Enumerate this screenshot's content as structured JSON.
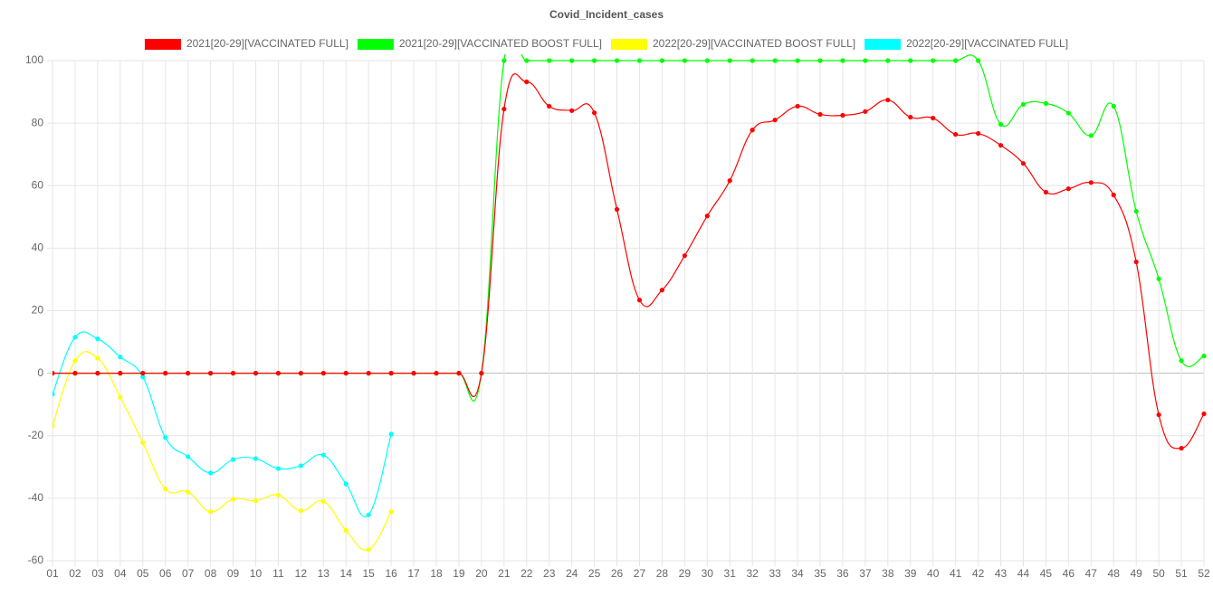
{
  "chart_data": {
    "type": "line",
    "title": "Covid_Incident_cases",
    "categories": [
      "01",
      "02",
      "03",
      "04",
      "05",
      "06",
      "07",
      "08",
      "09",
      "10",
      "11",
      "12",
      "13",
      "14",
      "15",
      "16",
      "17",
      "18",
      "19",
      "20",
      "21",
      "22",
      "23",
      "24",
      "25",
      "26",
      "27",
      "28",
      "29",
      "30",
      "31",
      "32",
      "33",
      "34",
      "35",
      "36",
      "37",
      "38",
      "39",
      "40",
      "41",
      "42",
      "43",
      "44",
      "45",
      "46",
      "47",
      "48",
      "49",
      "50",
      "51",
      "52"
    ],
    "ylim": [
      -60,
      100
    ],
    "yticks": [
      -60,
      -40,
      -20,
      0,
      20,
      40,
      60,
      80,
      100
    ],
    "grid": true,
    "series": [
      {
        "name": "2021[20-29][VACCINATED FULL]",
        "color": "#ff0000",
        "values": [
          0,
          0,
          0,
          0,
          0,
          0,
          0,
          0,
          0,
          0,
          0,
          0,
          0,
          0,
          0,
          0,
          0,
          0,
          0,
          0,
          84.5,
          93.2,
          85.4,
          84,
          83.3,
          52.4,
          23.4,
          26.6,
          37.6,
          50.3,
          61.6,
          77.8,
          81,
          85.4,
          82.8,
          82.5,
          83.7,
          87.4,
          81.9,
          81.6,
          76.4,
          76.7,
          72.9,
          67.1,
          57.9,
          59,
          61,
          57,
          35.6,
          -13.3,
          -24,
          -13
        ]
      },
      {
        "name": "2021[20-29][VACCINATED BOOST FULL]",
        "color": "#00ff00",
        "values": [
          0,
          0,
          0,
          0,
          0,
          0,
          0,
          0,
          0,
          0,
          0,
          0,
          0,
          0,
          0,
          0,
          0,
          0,
          0,
          0,
          100,
          100,
          100,
          100,
          100,
          100,
          100,
          100,
          100,
          100,
          100,
          100,
          100,
          100,
          100,
          100,
          100,
          100,
          100,
          100,
          100,
          100,
          79.6,
          86,
          86.3,
          83.2,
          76,
          85.4,
          51.8,
          30.2,
          4,
          5.5
        ]
      },
      {
        "name": "2022[20-29][VACCINATED BOOST FULL]",
        "color": "#ffff00",
        "values": [
          -16.8,
          4,
          4.8,
          -7.7,
          -22.2,
          -37,
          -38,
          -44.3,
          -40.3,
          -40.8,
          -39,
          -44,
          -41,
          -50.3,
          -56.4,
          -44.3,
          null,
          null,
          null,
          null,
          null,
          null,
          null,
          null,
          null,
          null,
          null,
          null,
          null,
          null,
          null,
          null,
          null,
          null,
          null,
          null,
          null,
          null,
          null,
          null,
          null,
          null,
          null,
          null,
          null,
          null,
          null,
          null,
          null,
          null,
          null,
          null
        ]
      },
      {
        "name": "2022[20-29][VACCINATED FULL]",
        "color": "#00ffff",
        "values": [
          -6.7,
          11.5,
          11,
          5.2,
          -1.2,
          -20.6,
          -26.7,
          -31.9,
          -27.6,
          -27.3,
          -30.5,
          -29.6,
          -26.2,
          -35.4,
          -45.3,
          -19.5,
          null,
          null,
          null,
          null,
          null,
          null,
          null,
          null,
          null,
          null,
          null,
          null,
          null,
          null,
          null,
          null,
          null,
          null,
          null,
          null,
          null,
          null,
          null,
          null,
          null,
          null,
          null,
          null,
          null,
          null,
          null,
          null,
          null,
          null,
          null,
          null
        ]
      }
    ]
  }
}
